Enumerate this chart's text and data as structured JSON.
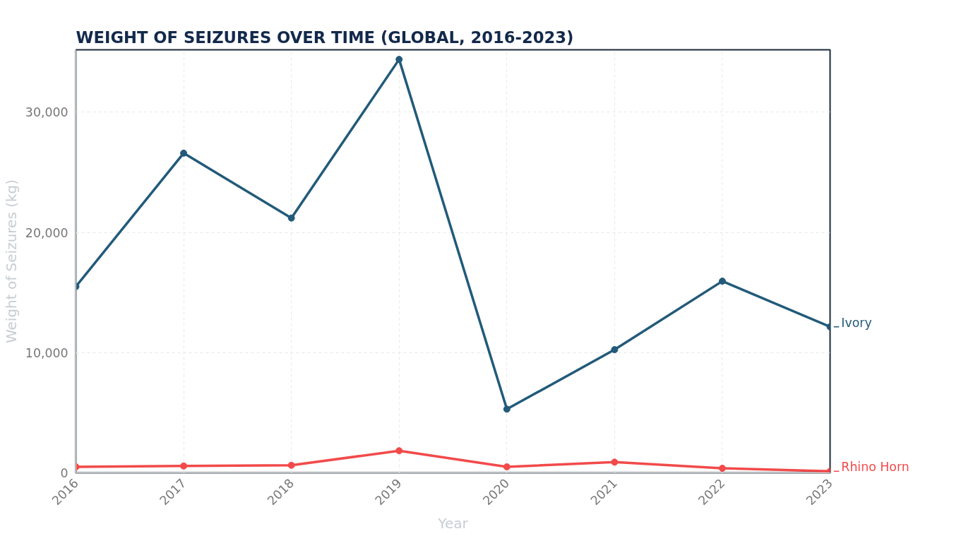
{
  "chart_data": {
    "type": "line",
    "title": "WEIGHT OF SEIZURES OVER TIME (GLOBAL, 2016-2023)",
    "xlabel": "Year",
    "ylabel": "Weight of Seizures (kg)",
    "x": [
      2016,
      2017,
      2018,
      2019,
      2020,
      2021,
      2022,
      2023
    ],
    "xlim": [
      2016,
      2023
    ],
    "xticks": [
      2016,
      2017,
      2018,
      2019,
      2020,
      2021,
      2022,
      2023
    ],
    "ylim": [
      0,
      35200
    ],
    "yticks": [
      {
        "value": 0,
        "label": "0"
      },
      {
        "value": 10000,
        "label": "10,000"
      },
      {
        "value": 20000,
        "label": "20,000"
      },
      {
        "value": 30000,
        "label": "30,000"
      }
    ],
    "series": [
      {
        "name": "Ivory",
        "color": "#225a7a",
        "values": [
          15500,
          26600,
          21200,
          34400,
          5300,
          10250,
          15950,
          12150
        ]
      },
      {
        "name": "Rhino Horn",
        "color": "#f24a4a",
        "values": [
          500,
          570,
          630,
          1840,
          500,
          890,
          380,
          130
        ]
      }
    ],
    "grid": true,
    "marker": "circle",
    "line_style": "solid",
    "legend": "right"
  }
}
